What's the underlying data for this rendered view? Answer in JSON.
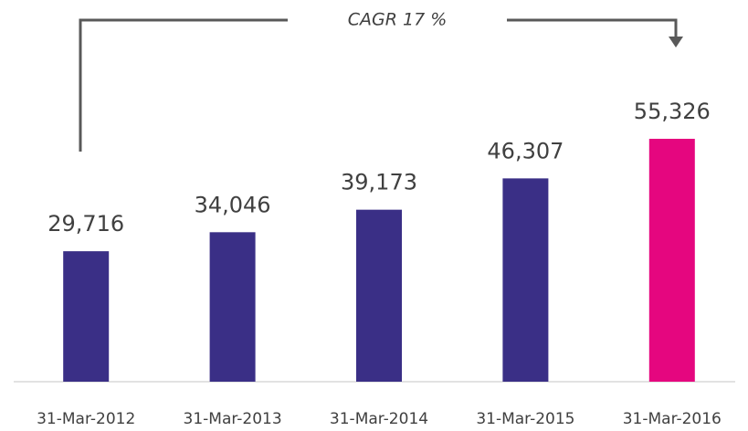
{
  "chart_data": {
    "type": "bar",
    "annotation": "CAGR 17 %",
    "categories": [
      "31-Mar-2012",
      "31-Mar-2013",
      "31-Mar-2014",
      "31-Mar-2015",
      "31-Mar-2016"
    ],
    "values": [
      29716,
      34046,
      39173,
      46307,
      55326
    ],
    "value_labels": [
      "29,716",
      "34,046",
      "39,173",
      "46,307",
      "55,326"
    ],
    "colors": [
      "#3a2f86",
      "#3a2f86",
      "#3a2f86",
      "#3a2f86",
      "#e5067f"
    ]
  }
}
